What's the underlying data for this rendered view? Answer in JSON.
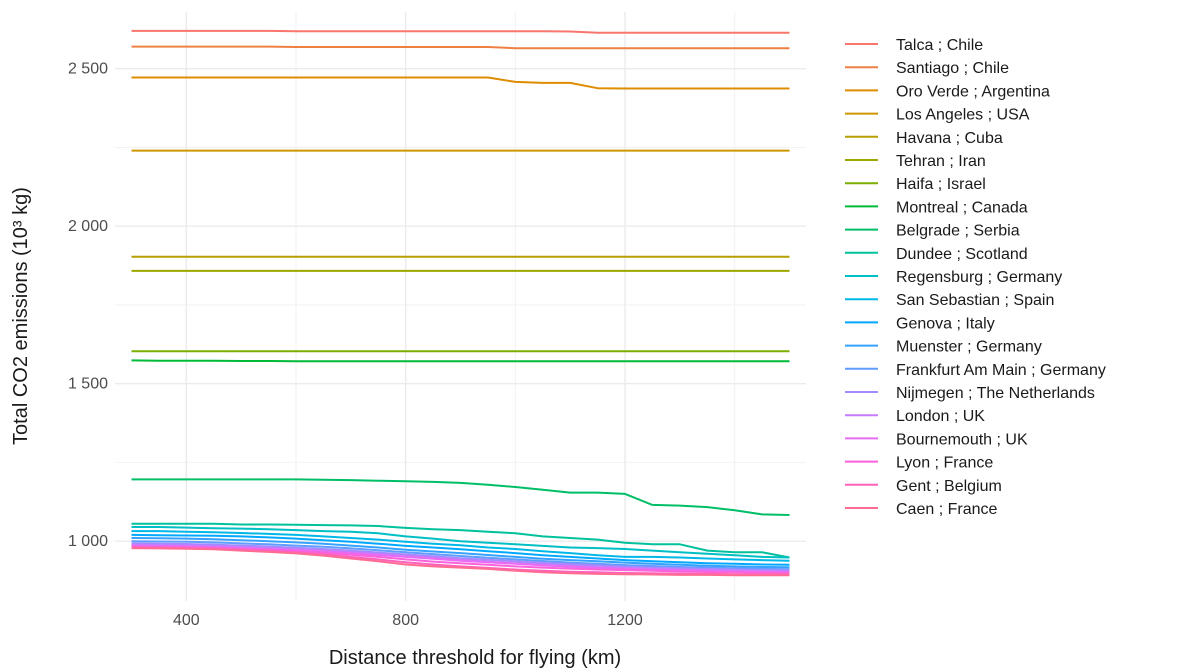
{
  "chart_data": {
    "type": "line",
    "title": "",
    "xlabel": "Distance threshold for flying (km)",
    "ylabel": "Total CO2 emissions (10³ kg)",
    "xlim": [
      270,
      1530
    ],
    "ylim": [
      810,
      2680
    ],
    "x_ticks": [
      400,
      800,
      1200
    ],
    "x_tick_labels": [
      "400",
      "800",
      "1200"
    ],
    "y_ticks": [
      1000,
      1500,
      2000,
      2500
    ],
    "y_tick_labels": [
      "1 000",
      "1 500",
      "2 000",
      "2 500"
    ],
    "grid": true,
    "legend_position": "right",
    "x": [
      300,
      350,
      400,
      450,
      500,
      550,
      600,
      650,
      700,
      750,
      800,
      850,
      900,
      950,
      1000,
      1050,
      1100,
      1150,
      1200,
      1250,
      1300,
      1350,
      1400,
      1450,
      1500
    ],
    "series": [
      {
        "name": "Talca ; Chile",
        "color": "#F8766D",
        "values": [
          2620,
          2620,
          2620,
          2620,
          2620,
          2620,
          2619,
          2619,
          2619,
          2619,
          2619,
          2619,
          2619,
          2619,
          2619,
          2619,
          2618,
          2614,
          2614,
          2614,
          2614,
          2614,
          2614,
          2614,
          2614
        ]
      },
      {
        "name": "Santiago ; Chile",
        "color": "#EE8044",
        "values": [
          2570,
          2570,
          2570,
          2570,
          2570,
          2570,
          2569,
          2569,
          2569,
          2569,
          2569,
          2569,
          2569,
          2569,
          2565,
          2565,
          2565,
          2565,
          2565,
          2565,
          2565,
          2565,
          2565,
          2565,
          2565
        ]
      },
      {
        "name": "Oro Verde ; Argentina",
        "color": "#DE8C00",
        "values": [
          2472,
          2472,
          2472,
          2472,
          2472,
          2472,
          2472,
          2472,
          2472,
          2472,
          2472,
          2472,
          2472,
          2472,
          2458,
          2455,
          2455,
          2438,
          2437,
          2437,
          2437,
          2437,
          2437,
          2437,
          2437
        ]
      },
      {
        "name": "Los Angeles ; USA",
        "color": "#CD9600",
        "values": [
          2240,
          2240,
          2240,
          2240,
          2240,
          2240,
          2240,
          2240,
          2240,
          2240,
          2240,
          2240,
          2240,
          2240,
          2240,
          2240,
          2240,
          2240,
          2240,
          2240,
          2240,
          2240,
          2240,
          2240,
          2240
        ]
      },
      {
        "name": "Havana ; Cuba",
        "color": "#B79F00",
        "values": [
          1903,
          1903,
          1903,
          1903,
          1903,
          1903,
          1903,
          1903,
          1903,
          1903,
          1903,
          1903,
          1903,
          1903,
          1903,
          1903,
          1903,
          1903,
          1903,
          1903,
          1903,
          1903,
          1903,
          1903,
          1903
        ]
      },
      {
        "name": "Tehran ; Iran",
        "color": "#9DA700",
        "values": [
          1858,
          1858,
          1858,
          1858,
          1858,
          1858,
          1858,
          1858,
          1858,
          1858,
          1858,
          1858,
          1858,
          1858,
          1858,
          1858,
          1858,
          1858,
          1858,
          1858,
          1858,
          1858,
          1858,
          1858,
          1858
        ]
      },
      {
        "name": "Haifa ; Israel",
        "color": "#7CAE00",
        "values": [
          1603,
          1603,
          1603,
          1603,
          1603,
          1603,
          1603,
          1603,
          1603,
          1603,
          1603,
          1603,
          1603,
          1603,
          1603,
          1603,
          1603,
          1603,
          1603,
          1603,
          1603,
          1603,
          1603,
          1603,
          1603
        ]
      },
      {
        "name": "Montreal ; Canada",
        "color": "#00BA38",
        "values": [
          1574,
          1573,
          1573,
          1573,
          1572,
          1572,
          1571,
          1571,
          1571,
          1571,
          1571,
          1571,
          1571,
          1571,
          1571,
          1571,
          1571,
          1571,
          1571,
          1571,
          1571,
          1571,
          1571,
          1571,
          1571
        ]
      },
      {
        "name": "Belgrade ; Serbia",
        "color": "#00BE67",
        "values": [
          1196,
          1196,
          1196,
          1196,
          1196,
          1196,
          1196,
          1195,
          1194,
          1192,
          1190,
          1188,
          1185,
          1179,
          1172,
          1163,
          1154,
          1154,
          1150,
          1115,
          1113,
          1108,
          1098,
          1085,
          1083
        ]
      },
      {
        "name": "Dundee ; Scotland",
        "color": "#00C19C",
        "values": [
          1055,
          1055,
          1055,
          1055,
          1053,
          1053,
          1052,
          1051,
          1050,
          1048,
          1042,
          1038,
          1035,
          1030,
          1025,
          1015,
          1010,
          1005,
          995,
          990,
          990,
          970,
          965,
          965,
          948
        ]
      },
      {
        "name": "Regensburg ; Germany",
        "color": "#00BFC4",
        "values": [
          1045,
          1045,
          1043,
          1041,
          1040,
          1038,
          1035,
          1032,
          1030,
          1025,
          1015,
          1008,
          1000,
          995,
          990,
          985,
          980,
          978,
          975,
          970,
          965,
          960,
          955,
          950,
          948
        ]
      },
      {
        "name": "San Sebastian ; Spain",
        "color": "#00B8E7",
        "values": [
          1032,
          1032,
          1030,
          1028,
          1026,
          1023,
          1020,
          1015,
          1010,
          1005,
          998,
          992,
          987,
          980,
          975,
          968,
          962,
          955,
          950,
          950,
          948,
          945,
          942,
          940,
          938
        ]
      },
      {
        "name": "Genova ; Italy",
        "color": "#00A9FF",
        "values": [
          1020,
          1019,
          1018,
          1017,
          1015,
          1012,
          1008,
          1003,
          998,
          992,
          985,
          980,
          974,
          968,
          962,
          955,
          950,
          945,
          940,
          936,
          933,
          930,
          928,
          926,
          925
        ]
      },
      {
        "name": "Muenster ; Germany",
        "color": "#35A2FF",
        "values": [
          1010,
          1009,
          1008,
          1006,
          1003,
          1000,
          996,
          992,
          986,
          980,
          973,
          967,
          962,
          956,
          950,
          944,
          940,
          936,
          932,
          928,
          925,
          922,
          920,
          918,
          917
        ]
      },
      {
        "name": "Frankfurt Am Main ; Germany",
        "color": "#619CFF",
        "values": [
          1000,
          999,
          998,
          996,
          993,
          990,
          986,
          982,
          977,
          971,
          965,
          959,
          953,
          947,
          942,
          937,
          932,
          928,
          924,
          921,
          918,
          916,
          914,
          912,
          911
        ]
      },
      {
        "name": "Nijmegen ; The Netherlands",
        "color": "#A58AFF",
        "values": [
          993,
          992,
          991,
          989,
          986,
          983,
          979,
          975,
          970,
          964,
          958,
          952,
          946,
          941,
          936,
          931,
          927,
          923,
          919,
          916,
          914,
          912,
          910,
          908,
          907
        ]
      },
      {
        "name": "London ; UK",
        "color": "#C77CFF",
        "values": [
          988,
          987,
          986,
          984,
          981,
          978,
          974,
          970,
          965,
          959,
          953,
          947,
          941,
          935,
          930,
          926,
          922,
          918,
          915,
          912,
          910,
          908,
          906,
          905,
          904
        ]
      },
      {
        "name": "Bournemouth ; UK",
        "color": "#E76BF3",
        "values": [
          985,
          984,
          983,
          981,
          978,
          975,
          971,
          967,
          962,
          956,
          950,
          944,
          938,
          933,
          928,
          923,
          919,
          915,
          912,
          909,
          907,
          905,
          903,
          902,
          901
        ]
      },
      {
        "name": "Lyon ; France",
        "color": "#FA62DB",
        "values": [
          982,
          981,
          980,
          978,
          975,
          972,
          968,
          963,
          957,
          950,
          942,
          935,
          930,
          925,
          920,
          916,
          913,
          910,
          908,
          906,
          904,
          902,
          901,
          900,
          899
        ]
      },
      {
        "name": "Gent ; Belgium",
        "color": "#FF62BC",
        "values": [
          980,
          979,
          978,
          976,
          973,
          969,
          964,
          958,
          950,
          942,
          933,
          926,
          920,
          915,
          910,
          906,
          903,
          901,
          899,
          898,
          897,
          896,
          895,
          895,
          894
        ]
      },
      {
        "name": "Caen ; France",
        "color": "#FF6C91",
        "values": [
          978,
          977,
          976,
          974,
          970,
          966,
          961,
          954,
          945,
          936,
          926,
          920,
          916,
          912,
          906,
          901,
          898,
          896,
          895,
          894,
          893,
          893,
          892,
          892,
          892
        ]
      }
    ]
  }
}
